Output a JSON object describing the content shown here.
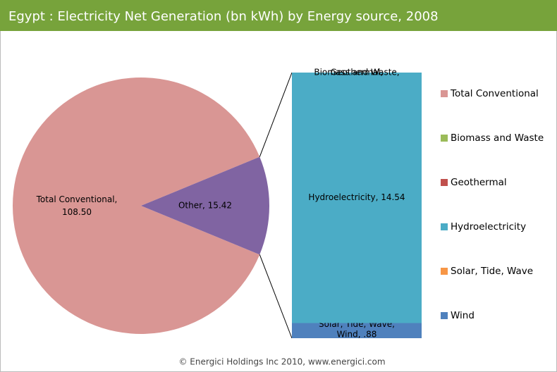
{
  "chart_data": {
    "type": "pie-of-bar",
    "title": "Egypt : Electricity Net Generation (bn kWh) by Energy source, 2008",
    "footer": "© Energici Holdings Inc 2010, www.energici.com",
    "pie": {
      "categories": [
        "Total Conventional",
        "Other"
      ],
      "values": [
        108.5,
        15.42
      ],
      "value_labels": [
        "Total Conventional, 108.50",
        "Other, 15.42"
      ],
      "colors": [
        "#d99694",
        "#8064a2"
      ]
    },
    "bar": {
      "categories": [
        "Biomass and Waste",
        "Geothermal",
        "Hydroelectricity",
        "Solar, Tide, Wave",
        "Wind"
      ],
      "values": [
        0,
        0,
        14.54,
        0,
        0.88
      ],
      "value_labels": [
        "Biomass and Waste,",
        "Geothermal,",
        "Hydroelectricity, 14.54",
        "Solar, Tide, Wave,",
        "Wind, .88"
      ],
      "colors": [
        "#9bbb59",
        "#c0504d",
        "#4bacc6",
        "#f79646",
        "#4f81bd"
      ]
    },
    "legend": {
      "names": [
        "Total Conventional",
        "Biomass and Waste",
        "Geothermal",
        "Hydroelectricity",
        "Solar, Tide, Wave",
        "Wind"
      ],
      "colors": [
        "#d99694",
        "#9bbb59",
        "#c0504d",
        "#4bacc6",
        "#f79646",
        "#4f81bd"
      ]
    }
  }
}
